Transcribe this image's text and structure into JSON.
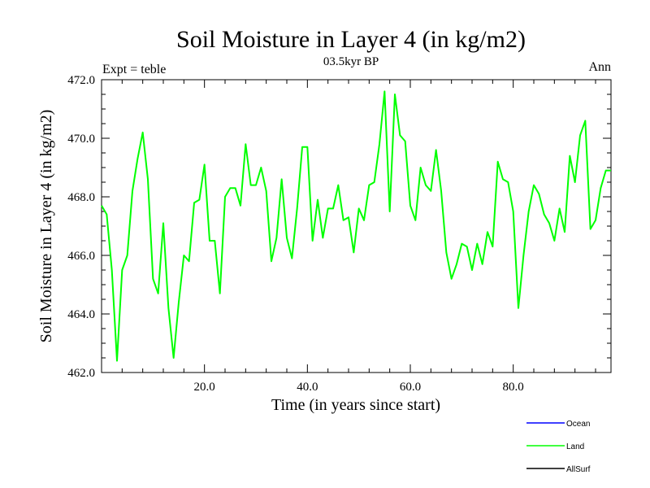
{
  "chart_data": {
    "type": "line",
    "title": "Soil Moisture in Layer 4 (in kg/m2)",
    "subtitle": "03.5kyr BP",
    "left_label": "Expt = teble",
    "right_label": "Ann",
    "xlabel": "Time (in years since start)",
    "ylabel": "Soil Moisture in Layer 4 (in kg/m2)",
    "xlim": [
      0,
      99
    ],
    "ylim": [
      462,
      472
    ],
    "xticks": [
      20,
      40,
      60,
      80
    ],
    "xtick_labels": [
      "20.0",
      "40.0",
      "60.0",
      "80.0"
    ],
    "yticks": [
      462,
      464,
      466,
      468,
      470,
      472
    ],
    "ytick_labels": [
      "462.0",
      "464.0",
      "466.0",
      "468.0",
      "470.0",
      "472.0"
    ],
    "legend_position": "bottom-right",
    "series": [
      {
        "name": "Ocean",
        "color": "#0000ff",
        "values": []
      },
      {
        "name": "Land",
        "color": "#00ff00",
        "x": [
          0,
          1,
          2,
          3,
          4,
          5,
          6,
          7,
          8,
          9,
          10,
          11,
          12,
          13,
          14,
          15,
          16,
          17,
          18,
          19,
          20,
          21,
          22,
          23,
          24,
          25,
          26,
          27,
          28,
          29,
          30,
          31,
          32,
          33,
          34,
          35,
          36,
          37,
          38,
          39,
          40,
          41,
          42,
          43,
          44,
          45,
          46,
          47,
          48,
          49,
          50,
          51,
          52,
          53,
          54,
          55,
          56,
          57,
          58,
          59,
          60,
          61,
          62,
          63,
          64,
          65,
          66,
          67,
          68,
          69,
          70,
          71,
          72,
          73,
          74,
          75,
          76,
          77,
          78,
          79,
          80,
          81,
          82,
          83,
          84,
          85,
          86,
          87,
          88,
          89,
          90,
          91,
          92,
          93,
          94,
          95,
          96,
          97,
          98,
          99
        ],
        "values": [
          467.7,
          467.4,
          465.5,
          462.4,
          465.5,
          466.0,
          468.2,
          469.3,
          470.2,
          468.6,
          465.2,
          464.7,
          467.1,
          464.2,
          462.5,
          464.4,
          466.0,
          465.8,
          467.8,
          467.9,
          469.1,
          466.5,
          466.5,
          464.7,
          468.0,
          468.3,
          468.3,
          467.7,
          469.8,
          468.4,
          468.4,
          469.0,
          468.2,
          465.8,
          466.6,
          468.6,
          466.6,
          465.9,
          467.6,
          469.7,
          469.7,
          466.5,
          467.9,
          466.6,
          467.6,
          467.6,
          468.4,
          467.2,
          467.3,
          466.1,
          467.6,
          467.2,
          468.4,
          468.5,
          469.8,
          471.6,
          467.5,
          471.5,
          470.1,
          469.9,
          467.7,
          467.2,
          469.0,
          468.4,
          468.2,
          469.6,
          468.2,
          466.1,
          465.2,
          465.7,
          466.4,
          466.3,
          465.5,
          466.4,
          465.7,
          466.8,
          466.3,
          469.2,
          468.6,
          468.5,
          467.5,
          464.2,
          466.0,
          467.5,
          468.4,
          468.1,
          467.4,
          467.1,
          466.5,
          467.6,
          466.8,
          469.4,
          468.5,
          470.1,
          470.6,
          466.9,
          467.2,
          468.3,
          468.9,
          468.9
        ]
      },
      {
        "name": "AllSurf",
        "color": "#000000",
        "values": []
      }
    ]
  }
}
